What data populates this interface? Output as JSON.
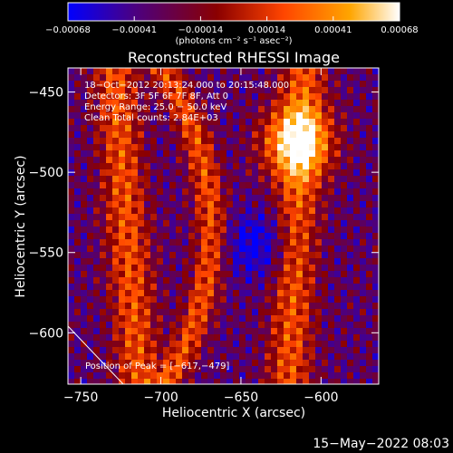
{
  "chart_data": {
    "type": "heatmap",
    "title": "Reconstructed RHESSI Image",
    "xlabel": "Heliocentric X (arcsec)",
    "ylabel": "Heliocentric Y (arcsec)",
    "xlim": [
      -758,
      -564
    ],
    "ylim": [
      -632,
      -435
    ],
    "x_ticks": [
      -750,
      -700,
      -650,
      -600
    ],
    "y_ticks": [
      -450,
      -500,
      -550,
      -600
    ],
    "x_tick_labels": [
      "−750",
      "−700",
      "−650",
      "−600"
    ],
    "y_tick_labels": [
      "−450",
      "−500",
      "−550",
      "−600"
    ],
    "colorbar": {
      "min": -0.00068,
      "max": 0.00068,
      "tick_labels": [
        "−0.00068",
        "−0.00041",
        "−0.00014",
        "0.00014",
        "0.00041",
        "0.00068"
      ],
      "units_label": "(photons cm⁻² s⁻¹ asec⁻²)",
      "colors": [
        "#0000ff",
        "#4b0082",
        "#8b0000",
        "#ff4500",
        "#ffa500",
        "#ffffff"
      ]
    },
    "annotations": {
      "time_range": "18−Oct−2012 20:13:24.000  to  20:15:48.000",
      "detectors": "Detectors: 3F 5F 6F 7F 8F, Att 0",
      "energy_range": "Energy Range: 25.0 − 50.0 keV",
      "method_counts": "Clean     Total counts: 2.84E+03",
      "peak_position": "Position of Peak = [−617,−479]"
    },
    "peak": {
      "x": -617,
      "y": -479
    }
  },
  "footer": {
    "date_stamp": "15−May−2022 08:03"
  }
}
